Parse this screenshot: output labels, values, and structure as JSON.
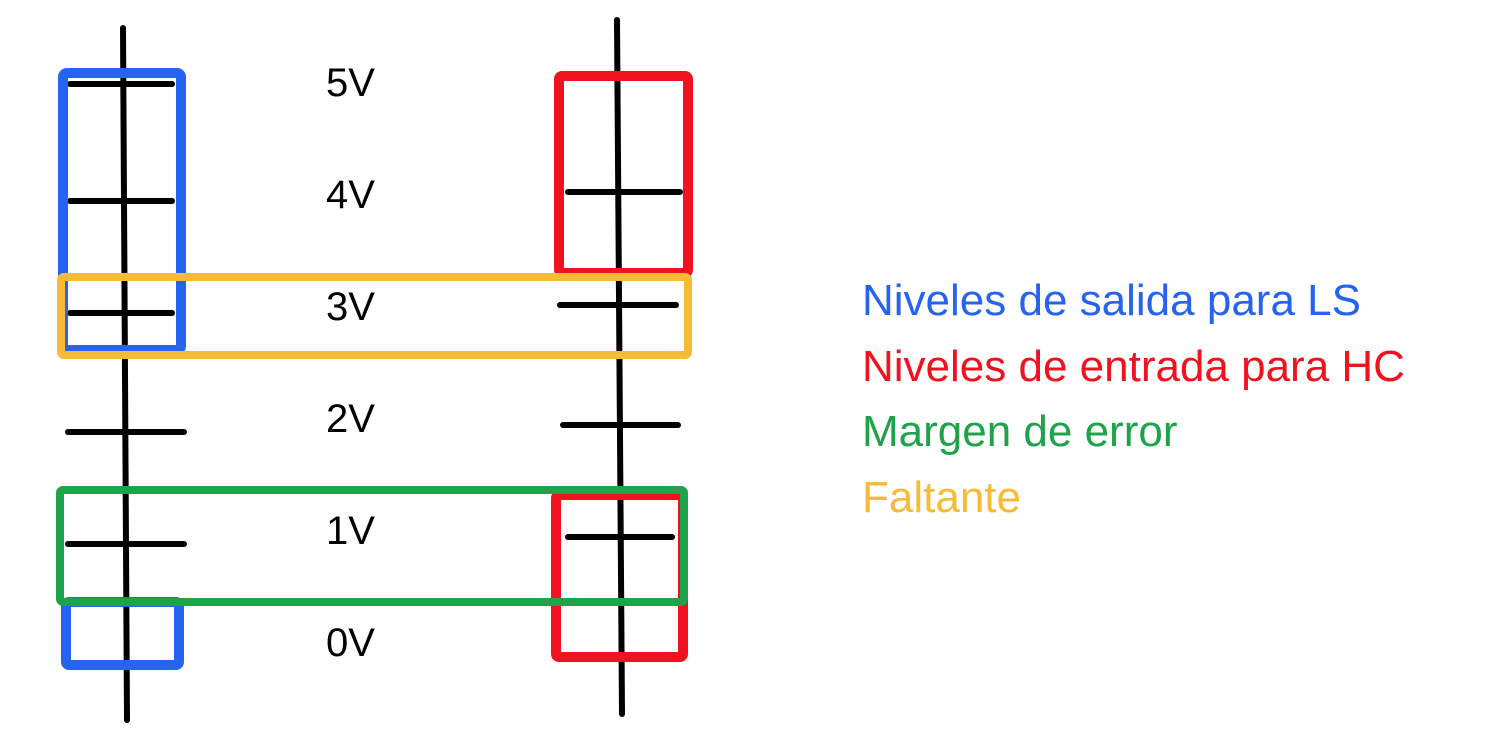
{
  "colors": {
    "blue": "#2563f0",
    "red": "#f0121f",
    "green": "#1ea34a",
    "orange": "#f9bb36",
    "black": "#000000"
  },
  "voltage_labels": [
    "5V",
    "4V",
    "3V",
    "2V",
    "1V",
    "0V"
  ],
  "legend": {
    "ls_output": "Niveles de salida para LS",
    "hc_input": "Niveles de entrada para HC",
    "error_margin": "Margen de error",
    "missing": "Faltante"
  }
}
